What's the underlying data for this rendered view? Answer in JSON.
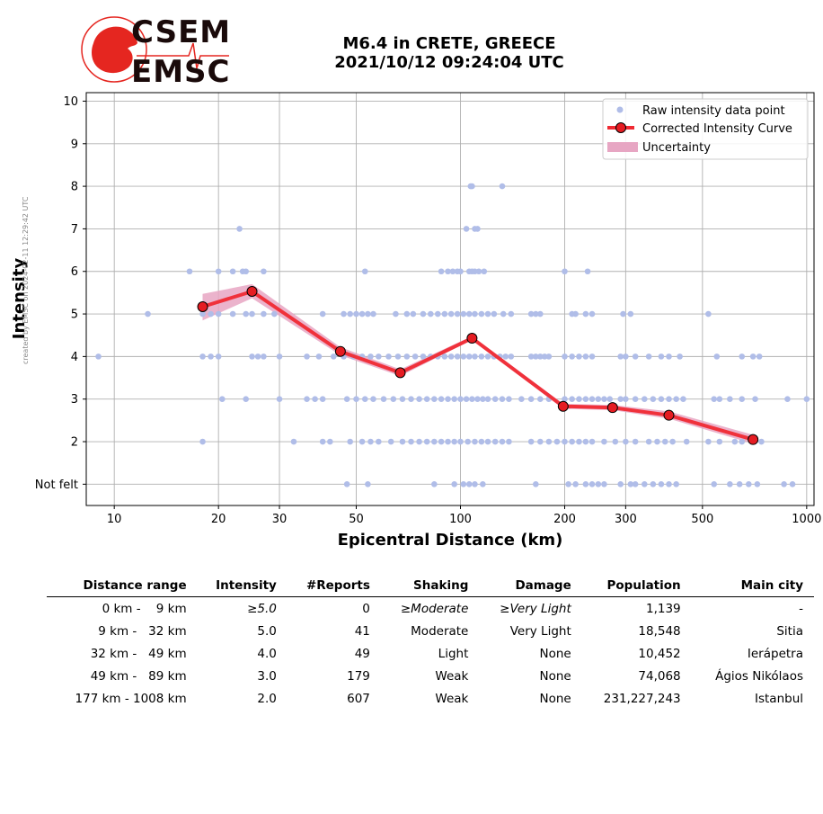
{
  "watermark": "created by EMSC on 2024-02-11 12:29:42 UTC",
  "logo": {
    "line1": "CSEM",
    "line2": "EMSC"
  },
  "title": {
    "line1": "M6.4 in CRETE, GREECE",
    "line2": "2021/10/12 09:24:04 UTC"
  },
  "colors": {
    "raw": "#b0bde8",
    "curve": "#f02a33",
    "marker": "#e51c22",
    "uncertainty": "#e7a6c3",
    "grid": "#b0b0b0"
  },
  "chart_data": {
    "type": "scatter",
    "xlabel": "Epicentral Distance (km)",
    "ylabel": "Intensity",
    "xscale": "log",
    "xlim": [
      8.3,
      1050
    ],
    "ylim": [
      0.5,
      10.2
    ],
    "xticks": [
      10,
      20,
      30,
      50,
      100,
      200,
      300,
      500,
      1000
    ],
    "yticks": [
      {
        "value": 1,
        "label": "Not felt"
      },
      {
        "value": 2,
        "label": "2"
      },
      {
        "value": 3,
        "label": "3"
      },
      {
        "value": 4,
        "label": "4"
      },
      {
        "value": 5,
        "label": "5"
      },
      {
        "value": 6,
        "label": "6"
      },
      {
        "value": 7,
        "label": "7"
      },
      {
        "value": 8,
        "label": "8"
      },
      {
        "value": 9,
        "label": "9"
      },
      {
        "value": 10,
        "label": "10"
      }
    ],
    "grid": true,
    "legend_position": "top-right",
    "legend": [
      "Raw intensity data point",
      "Corrected Intensity Curve",
      "Uncertainty"
    ],
    "raw_points": {
      "8": [
        107,
        108,
        132
      ],
      "7": [
        23,
        104,
        110,
        112
      ],
      "6": [
        16.5,
        20,
        22,
        23.5,
        24,
        27,
        53,
        88,
        92,
        95,
        98,
        100,
        106,
        108,
        110,
        113,
        117,
        200,
        233
      ],
      "5": [
        12.5,
        18,
        19,
        20,
        22,
        24,
        25,
        27,
        29,
        40,
        46,
        48,
        50,
        52,
        54,
        56,
        65,
        70,
        73,
        78,
        82,
        86,
        90,
        94,
        98,
        102,
        106,
        110,
        115,
        120,
        125,
        133,
        140,
        160,
        165,
        170,
        210,
        215,
        230,
        240,
        295,
        310,
        520
      ],
      "4": [
        9,
        18,
        19,
        20,
        25,
        26,
        27,
        30,
        36,
        39,
        43,
        46,
        49,
        52,
        55,
        58,
        62,
        66,
        70,
        74,
        78,
        82,
        86,
        90,
        94,
        98,
        102,
        106,
        110,
        115,
        120,
        125,
        130,
        135,
        140,
        160,
        165,
        170,
        175,
        180,
        200,
        210,
        220,
        230,
        240,
        290,
        300,
        320,
        350,
        380,
        400,
        430,
        550,
        650,
        700,
        730
      ],
      "3": [
        20.5,
        24,
        30,
        36,
        38,
        40,
        47,
        50,
        53,
        56,
        60,
        64,
        68,
        72,
        76,
        80,
        84,
        88,
        92,
        96,
        100,
        104,
        108,
        112,
        116,
        120,
        126,
        132,
        138,
        150,
        160,
        170,
        180,
        200,
        210,
        220,
        230,
        240,
        250,
        260,
        270,
        290,
        300,
        320,
        340,
        360,
        380,
        400,
        420,
        440,
        540,
        560,
        600,
        650,
        710,
        880,
        1000
      ],
      "2": [
        18,
        33,
        40,
        42,
        48,
        52,
        55,
        58,
        63,
        68,
        72,
        76,
        80,
        84,
        88,
        92,
        96,
        100,
        105,
        110,
        115,
        120,
        126,
        132,
        138,
        160,
        170,
        180,
        190,
        200,
        210,
        220,
        230,
        240,
        260,
        280,
        300,
        320,
        350,
        370,
        390,
        410,
        450,
        520,
        560,
        620,
        650,
        700,
        740
      ],
      "1": [
        47,
        54,
        84,
        96,
        102,
        106,
        110,
        116,
        165,
        205,
        215,
        230,
        240,
        250,
        260,
        290,
        310,
        320,
        340,
        360,
        380,
        400,
        420,
        540,
        600,
        640,
        680,
        720,
        860,
        910
      ]
    },
    "curve": {
      "x": [
        18,
        25,
        45,
        67,
        108,
        198,
        275,
        400,
        700
      ],
      "y": [
        5.17,
        5.53,
        4.12,
        3.62,
        4.43,
        2.83,
        2.8,
        2.62,
        2.05
      ],
      "lower": [
        4.85,
        5.37,
        4.03,
        3.54,
        4.39,
        2.77,
        2.74,
        2.54,
        1.95
      ],
      "upper": [
        5.47,
        5.7,
        4.22,
        3.7,
        4.48,
        2.89,
        2.86,
        2.71,
        2.16
      ]
    }
  },
  "table": {
    "headers": [
      "Distance range",
      "Intensity",
      "#Reports",
      "Shaking",
      "Damage",
      "Population",
      "Main city"
    ],
    "rows": [
      [
        "0 km -    9 km",
        "≥5.0",
        "0",
        "≥Moderate",
        "≥Very Light",
        "1,139",
        "-"
      ],
      [
        "9 km -   32 km",
        "5.0",
        "41",
        "Moderate",
        "Very Light",
        "18,548",
        "Sitia"
      ],
      [
        "32 km -   49 km",
        "4.0",
        "49",
        "Light",
        "None",
        "10,452",
        "Ierápetra"
      ],
      [
        "49 km -   89 km",
        "3.0",
        "179",
        "Weak",
        "None",
        "74,068",
        "Ágios Nikólaos"
      ],
      [
        "177 km - 1008 km",
        "2.0",
        "607",
        "Weak",
        "None",
        "231,227,243",
        "Istanbul"
      ]
    ]
  }
}
